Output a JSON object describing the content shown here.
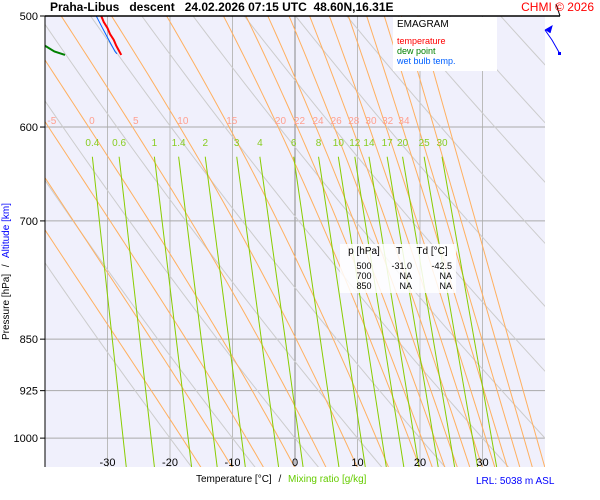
{
  "header": {
    "title": "Praha-Libus   descent   24.02.2026 07:15 UTC  48.60N,16.31E",
    "copyright": "CHMI © 2026"
  },
  "legend": {
    "title": "EMAGRAM",
    "items": [
      {
        "label": "temperature",
        "color": "#ff0000"
      },
      {
        "label": "dew point",
        "color": "#008000"
      },
      {
        "label": "wet bulb temp.",
        "color": "#0060ff"
      }
    ]
  },
  "table": {
    "headers": [
      "p [hPa]",
      "T",
      "Td [°C]"
    ],
    "rows": [
      [
        "500",
        "-31.0",
        "-42.5"
      ],
      [
        "700",
        "NA",
        "NA"
      ],
      [
        "850",
        "NA",
        "NA"
      ]
    ]
  },
  "footer": {
    "lrl": "LRL: 5038 m ASL"
  },
  "chart_data": {
    "type": "line",
    "title": "EMAGRAM",
    "xlabel": "Temperature [°C]",
    "xlabel2": "Mixing ratio [g/kg]",
    "xsep": "/",
    "ylabel": "Pressure [hPa]",
    "ylabel2": "Altitude [km]",
    "ysep": "/",
    "xlim": [
      -40,
      40
    ],
    "ylim": [
      1050,
      500
    ],
    "xticks": [
      -30,
      -20,
      -10,
      0,
      10,
      20,
      30
    ],
    "yticks": [
      500,
      600,
      700,
      850,
      925,
      1000
    ],
    "moist_adiabat_labels": [
      "-5",
      "0",
      "5",
      "10",
      "15",
      "20",
      "22",
      "24",
      "26",
      "28",
      "30",
      "32",
      "34"
    ],
    "mixing_ratio_labels": [
      "0.4",
      "0.6",
      "1",
      "1.4",
      "2",
      "3",
      "4",
      "6",
      "8",
      "10",
      "12",
      "14",
      "17",
      "20",
      "25",
      "30"
    ],
    "series": [
      {
        "name": "temperature",
        "color": "#ff0000",
        "p": [
          500,
          505,
          510,
          515,
          520,
          525,
          530,
          533
        ],
        "t": [
          -31.0,
          -30.6,
          -30.0,
          -29.6,
          -29.0,
          -28.6,
          -28.1,
          -27.8
        ]
      },
      {
        "name": "dew point",
        "color": "#008000",
        "p": [
          500,
          505,
          510,
          515,
          520,
          525,
          530,
          533
        ],
        "t": [
          -42.5,
          -41.2,
          -41.0,
          -41.3,
          -40.8,
          -40.0,
          -38.5,
          -36.8
        ]
      },
      {
        "name": "wet bulb temp.",
        "color": "#0060ff",
        "p": [
          500,
          505,
          510,
          515,
          520,
          525,
          530,
          532
        ],
        "t": [
          -31.8,
          -31.3,
          -30.8,
          -30.3,
          -29.8,
          -29.3,
          -28.8,
          -28.5
        ]
      }
    ]
  }
}
